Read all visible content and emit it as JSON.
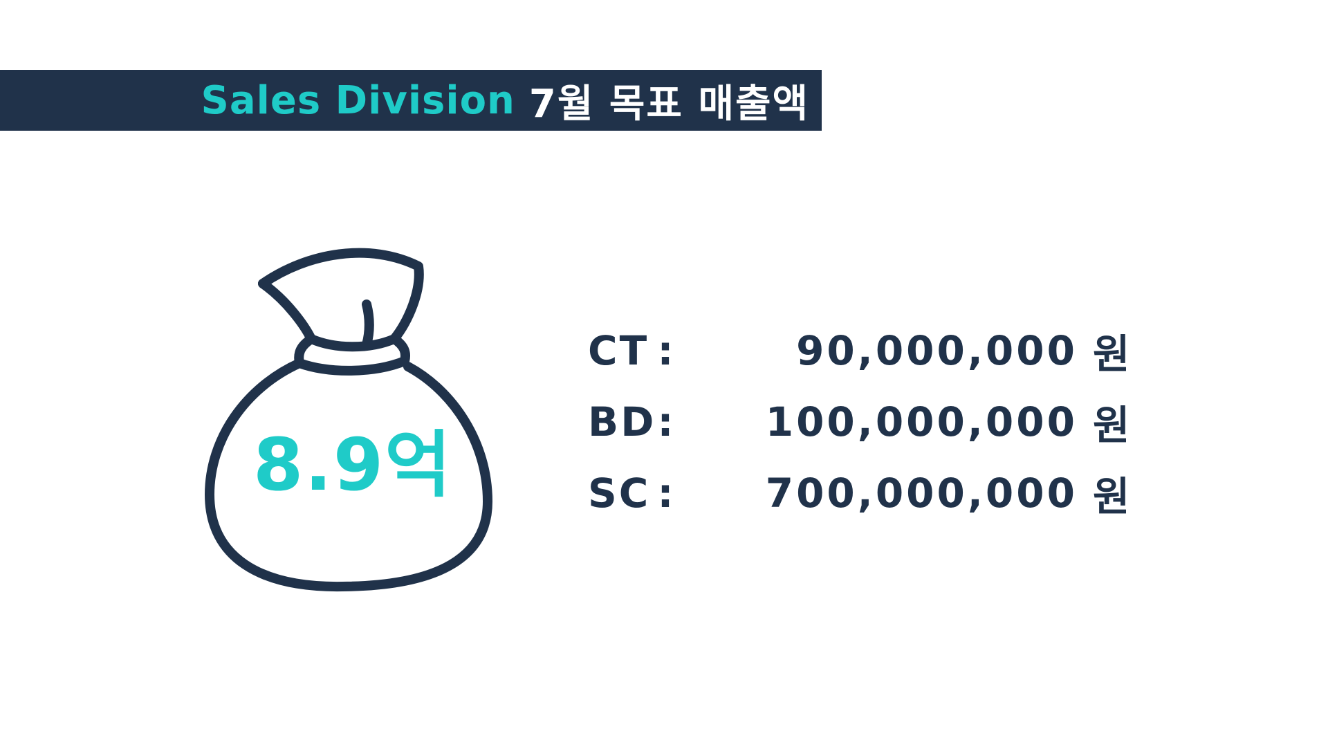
{
  "header": {
    "title_en": "Sales Division",
    "title_ko": "7월 목표 매출액"
  },
  "bag": {
    "total_label": "8.9억",
    "icon": "money-bag-icon"
  },
  "targets": [
    {
      "code": "CT",
      "colon": ":",
      "amount": "90,000,000",
      "unit": "원"
    },
    {
      "code": "BD",
      "colon": ":",
      "amount": "100,000,000",
      "unit": "원"
    },
    {
      "code": "SC",
      "colon": ":",
      "amount": "700,000,000",
      "unit": "원"
    }
  ],
  "colors": {
    "navy": "#20324a",
    "teal": "#1fcbc8",
    "background": "#ffffff"
  }
}
